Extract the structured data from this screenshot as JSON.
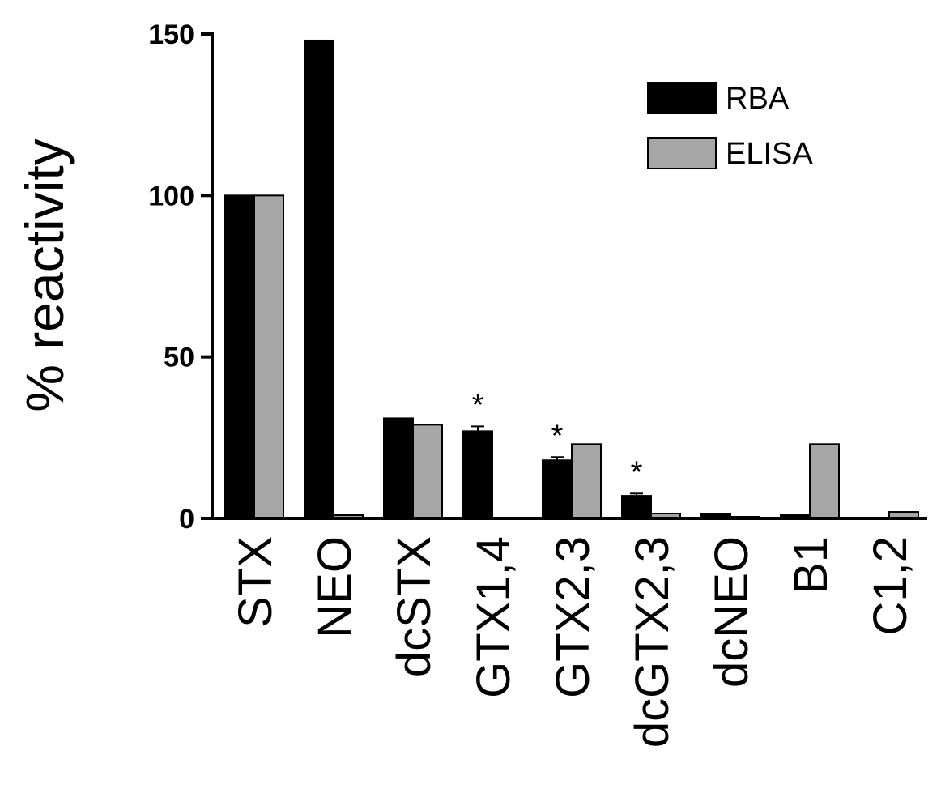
{
  "chart_data": {
    "type": "bar",
    "title": "",
    "xlabel": "",
    "ylabel": "% reactivity",
    "ylim": [
      0,
      150
    ],
    "yticks": [
      0,
      50,
      100,
      150
    ],
    "categories": [
      "STX",
      "NEO",
      "dcSTX",
      "GTX1,4",
      "GTX2,3",
      "dcGTX2,3",
      "dcNEO",
      "B1",
      "C1,2"
    ],
    "series": [
      {
        "name": "RBA",
        "color": "#000000",
        "values": [
          100,
          148,
          31,
          27,
          18,
          7,
          1.5,
          1,
          0
        ],
        "errors": [
          0,
          0,
          0,
          1.5,
          1,
          0.7,
          0,
          0,
          0
        ]
      },
      {
        "name": "ELISA",
        "color": "#a6a6a6",
        "values": [
          100,
          1,
          29,
          0,
          23,
          1.5,
          0.5,
          23,
          2
        ],
        "errors": [
          0,
          0,
          0,
          0,
          0,
          0,
          0,
          0,
          0
        ]
      }
    ],
    "annotations": [
      {
        "category": "GTX1,4",
        "series": "RBA",
        "text": "*"
      },
      {
        "category": "GTX2,3",
        "series": "RBA",
        "text": "*"
      },
      {
        "category": "dcGTX2,3",
        "series": "RBA",
        "text": "*"
      }
    ],
    "legend": {
      "position": "top-right"
    },
    "grid": false
  }
}
